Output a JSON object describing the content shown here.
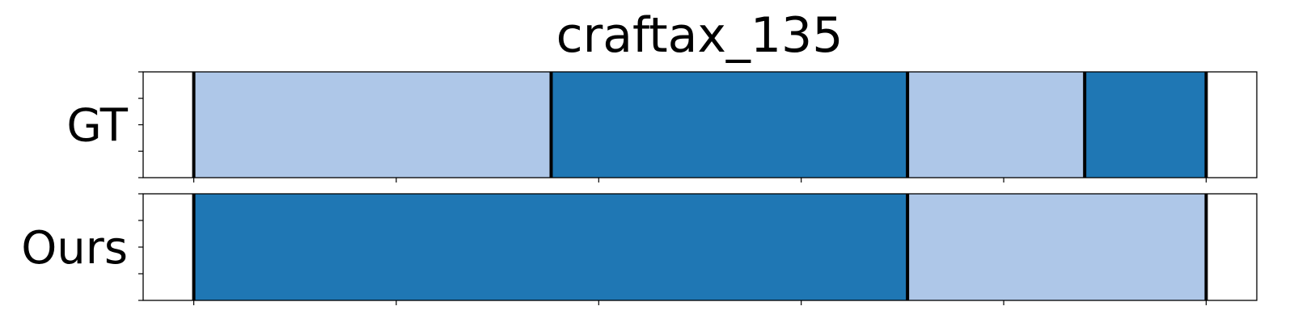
{
  "chart_data": {
    "type": "segment_timeline",
    "title": "craftax_135",
    "xlim": [
      -0.5,
      10.5
    ],
    "xticks": [
      0,
      2,
      4,
      6,
      8,
      10
    ],
    "yticks_per_row": 5,
    "tick_labels_shown": false,
    "colors": {
      "light": "#aec7e8",
      "dark": "#1f77b4",
      "boundary": "#000000"
    },
    "rows": [
      {
        "label": "GT",
        "segments": [
          {
            "start": 0.0,
            "end": 3.53,
            "color": "light"
          },
          {
            "start": 3.53,
            "end": 7.05,
            "color": "dark"
          },
          {
            "start": 7.05,
            "end": 8.8,
            "color": "light"
          },
          {
            "start": 8.8,
            "end": 10.0,
            "color": "dark"
          }
        ],
        "boundaries": [
          0.0,
          3.53,
          7.05,
          8.8,
          10.0
        ]
      },
      {
        "label": "Ours",
        "segments": [
          {
            "start": 0.0,
            "end": 7.05,
            "color": "dark"
          },
          {
            "start": 7.05,
            "end": 10.0,
            "color": "light"
          }
        ],
        "boundaries": [
          0.0,
          7.05,
          10.0
        ]
      }
    ]
  }
}
